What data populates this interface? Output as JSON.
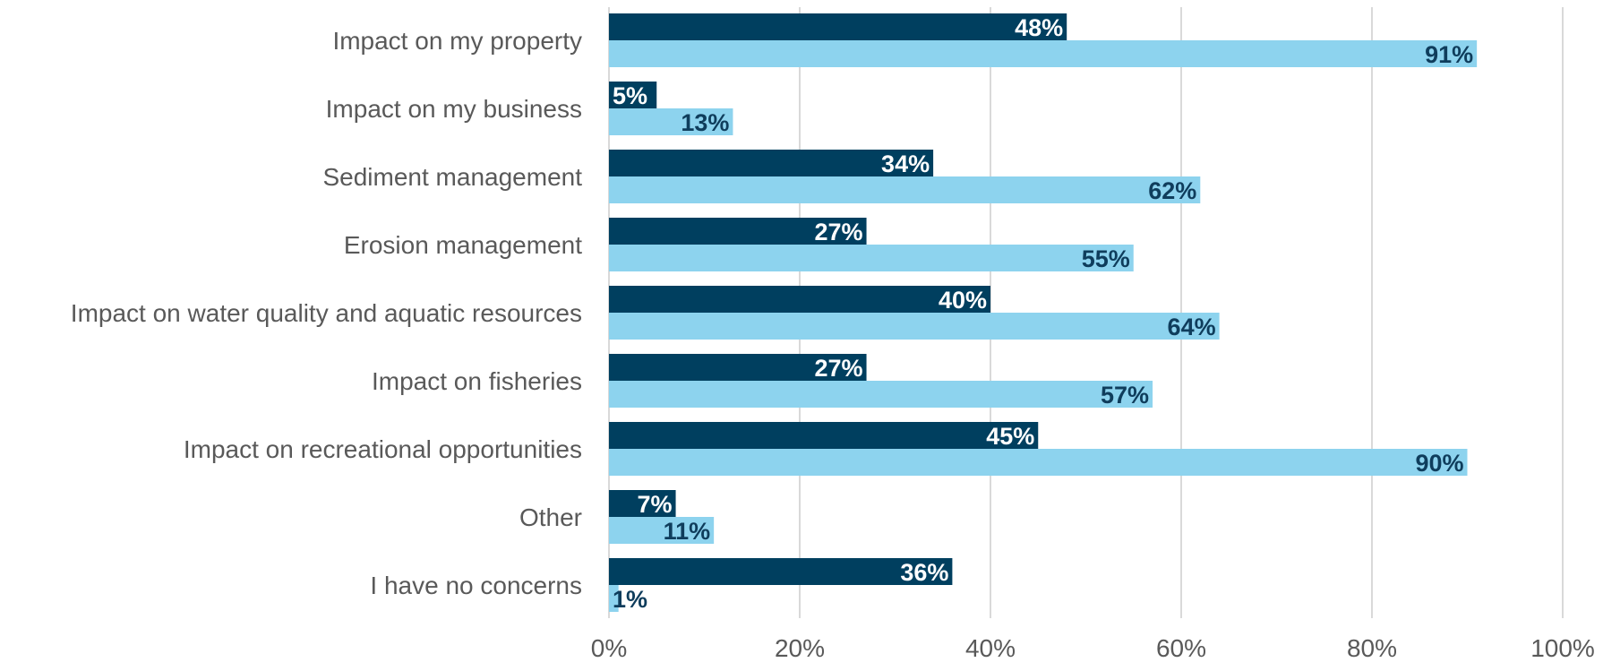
{
  "chart_data": {
    "type": "bar",
    "orientation": "horizontal",
    "title": "",
    "xlabel": "",
    "ylabel": "",
    "xlim": [
      0,
      100
    ],
    "ticks": [
      "0%",
      "20%",
      "40%",
      "60%",
      "80%",
      "100%"
    ],
    "grid": true,
    "legend": "none",
    "categories": [
      "Impact on my property",
      "Impact on my business",
      "Sediment management",
      "Erosion management",
      "Impact on water quality and aquatic resources",
      "Impact on fisheries",
      "Impact on recreational opportunities",
      "Other",
      "I have no concerns"
    ],
    "series": [
      {
        "color": "#003f5f",
        "label_color": "#ffffff",
        "values": [
          48,
          5,
          34,
          27,
          40,
          27,
          45,
          7,
          36
        ],
        "labels": [
          "48%",
          "5%",
          "34%",
          "27%",
          "40%",
          "27%",
          "45%",
          "7%",
          "36%"
        ]
      },
      {
        "color": "#8dd3ee",
        "label_color": "#0f3d5c",
        "values": [
          91,
          13,
          62,
          55,
          64,
          57,
          90,
          11,
          1
        ],
        "labels": [
          "91%",
          "13%",
          "62%",
          "55%",
          "64%",
          "57%",
          "90%",
          "11%",
          "1%"
        ]
      }
    ]
  }
}
